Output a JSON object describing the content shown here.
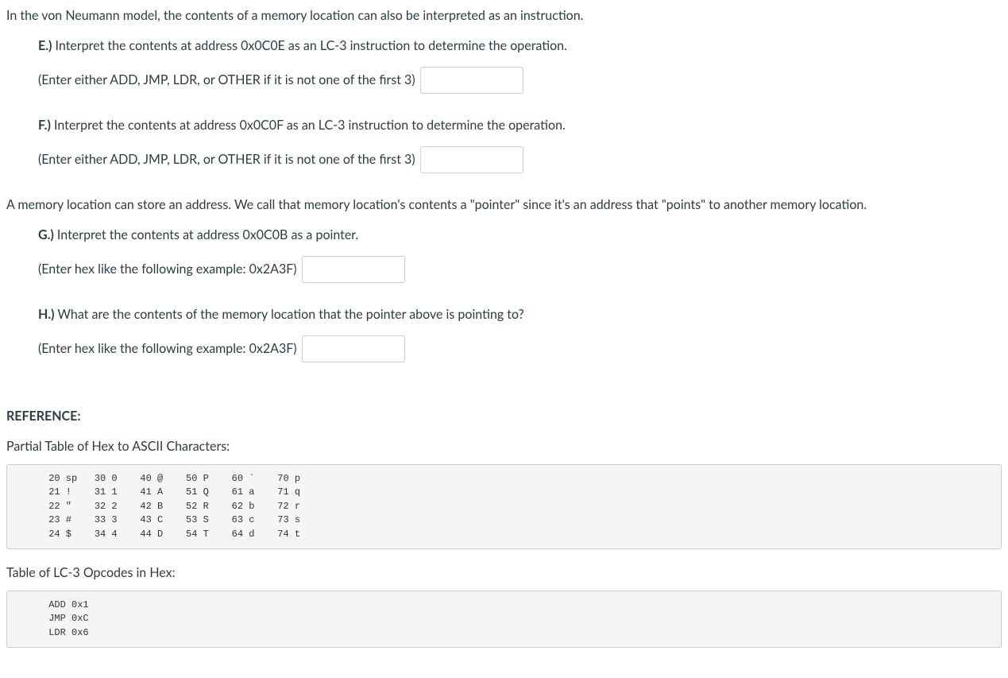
{
  "intro_instruction": "In the von Neumann model, the contents of a memory location can also be interpreted as an instruction.",
  "qE": {
    "label": "E.)",
    "text": "Interpret the contents at address 0x0C0E as an LC-3 instruction to determine the operation.",
    "hint": "(Enter either ADD, JMP, LDR, or OTHER if it is not one of the first 3)"
  },
  "qF": {
    "label": "F.)",
    "text": "Interpret the contents at address 0x0C0F as an LC-3 instruction to determine the operation.",
    "hint": "(Enter either ADD, JMP, LDR, or OTHER if it is not one of the first 3)"
  },
  "intro_pointer": "A memory location can store an address. We call that memory location's contents a \"pointer\" since it's an address that \"points\" to another memory location.",
  "qG": {
    "label": "G.)",
    "text": "Interpret the contents at address 0x0C0B as a pointer.",
    "hint": "(Enter hex like the following example: 0x2A3F)"
  },
  "qH": {
    "label": "H.)",
    "text": "What are the contents of the memory location that the pointer above is pointing to?",
    "hint": "(Enter hex like the following example: 0x2A3F)"
  },
  "reference": {
    "heading": "REFERENCE:",
    "ascii_title": "Partial Table of Hex to ASCII Characters:",
    "ascii_table": "      20 sp   30 0    40 @    50 P    60 `    70 p\n      21 !    31 1    41 A    51 Q    61 a    71 q\n      22 \"    32 2    42 B    52 R    62 b    72 r\n      23 #    33 3    43 C    53 S    63 c    73 s\n      24 $    34 4    44 D    54 T    64 d    74 t",
    "opcode_title": "Table of LC-3 Opcodes in Hex:",
    "opcode_table": "      ADD 0x1\n      JMP 0xC\n      LDR 0x6"
  }
}
